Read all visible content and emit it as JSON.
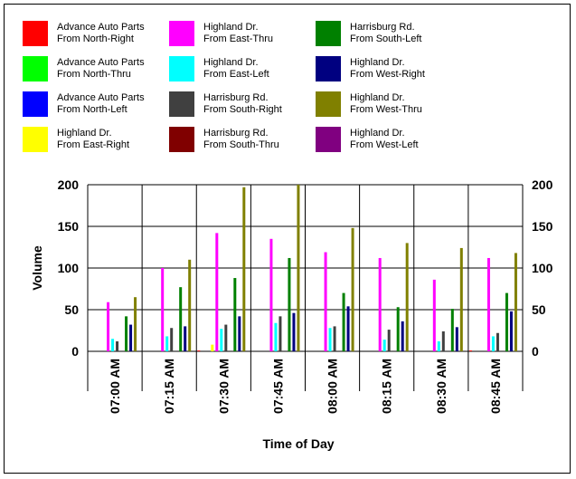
{
  "chart_data": {
    "type": "bar",
    "xlabel": "Time of Day",
    "ylabel": "Volume",
    "ylim": [
      0,
      200
    ],
    "yticks": [
      "0",
      "50",
      "100",
      "150",
      "200"
    ],
    "grid": true,
    "legend_position": "top",
    "categories": [
      "07:00 AM",
      "07:15 AM",
      "07:30 AM",
      "07:45 AM",
      "08:00 AM",
      "08:15 AM",
      "08:30 AM",
      "08:45 AM"
    ],
    "series": [
      {
        "name": "Advance Auto Parts From North-Right",
        "label_lines": [
          "Advance Auto Parts",
          "From North-Right"
        ],
        "color": "#ff0000",
        "values": [
          0,
          0,
          1,
          0,
          0,
          0,
          0,
          1
        ]
      },
      {
        "name": "Advance Auto Parts From North-Thru",
        "label_lines": [
          "Advance Auto Parts",
          "From North-Thru"
        ],
        "color": "#00ff00",
        "values": [
          0,
          0,
          0,
          0,
          0,
          0,
          0,
          0
        ]
      },
      {
        "name": "Advance Auto Parts From North-Left",
        "label_lines": [
          "Advance Auto Parts",
          "From North-Left"
        ],
        "color": "#0000ff",
        "values": [
          0,
          0,
          0,
          0,
          0,
          0,
          0,
          0
        ]
      },
      {
        "name": "Highland Dr. From East-Right",
        "label_lines": [
          "Highland Dr.",
          "From East-Right"
        ],
        "color": "#ffff00",
        "values": [
          0,
          0,
          8,
          0,
          0,
          0,
          0,
          0
        ]
      },
      {
        "name": "Highland Dr. From East-Thru",
        "label_lines": [
          "Highland Dr.",
          "From East-Thru"
        ],
        "color": "#ff00ff",
        "values": [
          59,
          100,
          142,
          135,
          119,
          112,
          86,
          112
        ]
      },
      {
        "name": "Highland Dr. From East-Left",
        "label_lines": [
          "Highland Dr.",
          "From East-Left"
        ],
        "color": "#00ffff",
        "values": [
          15,
          18,
          27,
          34,
          28,
          14,
          12,
          18
        ]
      },
      {
        "name": "Harrisburg Rd. From South-Right",
        "label_lines": [
          "Harrisburg Rd.",
          "From South-Right"
        ],
        "color": "#404040",
        "values": [
          12,
          28,
          32,
          42,
          30,
          26,
          24,
          22
        ]
      },
      {
        "name": "Harrisburg Rd. From South-Thru",
        "label_lines": [
          "Harrisburg Rd.",
          "From South-Thru"
        ],
        "color": "#800000",
        "values": [
          0,
          0,
          0,
          0,
          0,
          0,
          0,
          0
        ]
      },
      {
        "name": "Harrisburg Rd. From South-Left",
        "label_lines": [
          "Harrisburg Rd.",
          "From South-Left"
        ],
        "color": "#008000",
        "values": [
          42,
          77,
          88,
          112,
          70,
          53,
          51,
          70
        ]
      },
      {
        "name": "Highland Dr. From West-Right",
        "label_lines": [
          "Highland Dr.",
          "From West-Right"
        ],
        "color": "#000080",
        "values": [
          32,
          30,
          42,
          46,
          54,
          36,
          29,
          48
        ]
      },
      {
        "name": "Highland Dr. From West-Thru",
        "label_lines": [
          "Highland Dr.",
          "From West-Thru"
        ],
        "color": "#808000",
        "values": [
          65,
          110,
          197,
          200,
          148,
          130,
          124,
          118
        ]
      },
      {
        "name": "Highland Dr. From West-Left",
        "label_lines": [
          "Highland Dr.",
          "From West-Left"
        ],
        "color": "#800080",
        "values": [
          0,
          0,
          0,
          0,
          0,
          0,
          0,
          0
        ]
      }
    ]
  }
}
